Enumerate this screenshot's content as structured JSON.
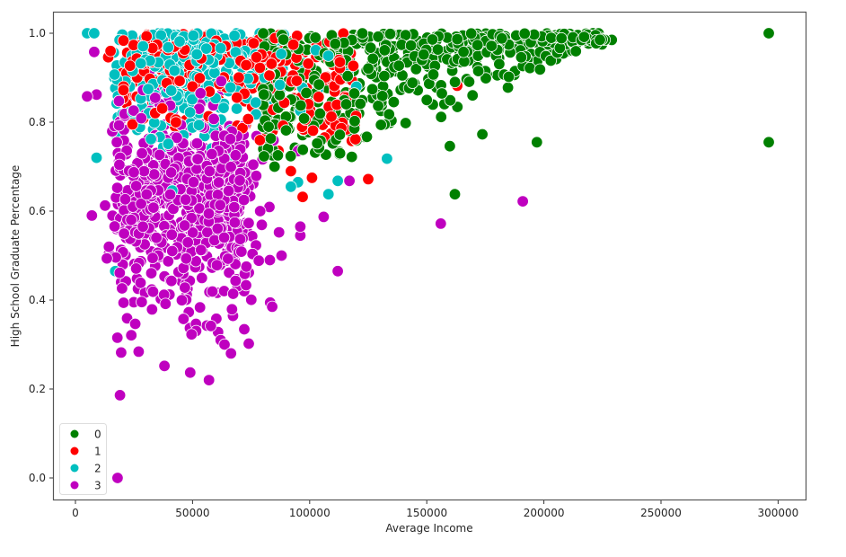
{
  "chart_data": {
    "type": "scatter",
    "title": "",
    "xlabel": "Average Income",
    "ylabel": "High School Graduate Percentage",
    "xlim": [
      -10000,
      312000
    ],
    "ylim": [
      -0.05,
      1.05
    ],
    "xticks": [
      0,
      50000,
      100000,
      150000,
      200000,
      250000,
      300000
    ],
    "xtick_labels": [
      "0",
      "50000",
      "100000",
      "150000",
      "200000",
      "250000",
      "300000"
    ],
    "yticks": [
      0.0,
      0.2,
      0.4,
      0.6,
      0.8,
      1.0
    ],
    "ytick_labels": [
      "0.0",
      "0.2",
      "0.4",
      "0.6",
      "0.8",
      "1.0"
    ],
    "grid": false,
    "legend_position": "lower left",
    "legend": [
      {
        "label": "0",
        "color": "#008000"
      },
      {
        "label": "1",
        "color": "#ff0000"
      },
      {
        "label": "2",
        "color": "#00bfbf"
      },
      {
        "label": "3",
        "color": "#bf00bf"
      }
    ],
    "series": [
      {
        "name": "0",
        "color": "#008000",
        "cluster": {
          "x_range": [
            75000,
            230000
          ],
          "y_range": [
            0.72,
            1.0
          ],
          "n": 520,
          "shape": "upper-right wedge"
        },
        "outliers": [
          [
            296000,
            1.0
          ],
          [
            296000,
            0.755
          ],
          [
            197000,
            0.755
          ],
          [
            162000,
            0.638
          ],
          [
            229000,
            0.985
          ],
          [
            226000,
            0.985
          ],
          [
            221000,
            1.0
          ],
          [
            214000,
            0.985
          ],
          [
            183000,
            0.907
          ],
          [
            175000,
            0.915
          ],
          [
            172000,
            0.915
          ],
          [
            196000,
            0.927
          ],
          [
            141000,
            0.798
          ],
          [
            132000,
            0.795
          ],
          [
            160000,
            0.849
          ],
          [
            150000,
            0.85
          ],
          [
            118000,
            0.722
          ],
          [
            100000,
            0.8
          ],
          [
            85000,
            0.7
          ]
        ]
      },
      {
        "name": "1",
        "color": "#ff0000",
        "cluster": {
          "x_range": [
            20000,
            120000
          ],
          "y_range": [
            0.72,
            1.0
          ],
          "n": 360,
          "shape": "upper-middle band"
        },
        "outliers": [
          [
            125000,
            0.672
          ],
          [
            163000,
            0.882
          ],
          [
            118000,
            0.758
          ],
          [
            101000,
            0.675
          ],
          [
            97000,
            0.632
          ],
          [
            110000,
            0.818
          ],
          [
            92000,
            0.69
          ],
          [
            14000,
            0.946
          ],
          [
            15000,
            0.96
          ]
        ]
      },
      {
        "name": "2",
        "color": "#00bfbf",
        "cluster": {
          "x_range": [
            10000,
            90000
          ],
          "y_range": [
            0.74,
            1.0
          ],
          "n": 380,
          "shape": "upper-left band"
        },
        "outliers": [
          [
            5000,
            1.0
          ],
          [
            8000,
            1.0
          ],
          [
            133000,
            0.718
          ],
          [
            112000,
            0.668
          ],
          [
            108000,
            0.638
          ],
          [
            95000,
            0.665
          ],
          [
            92000,
            0.655
          ],
          [
            17000,
            0.465
          ],
          [
            9000,
            0.72
          ]
        ]
      },
      {
        "name": "3",
        "color": "#bf00bf",
        "cluster": {
          "x_range": [
            10000,
            90000
          ],
          "y_range": [
            0.3,
            0.95
          ],
          "n": 700,
          "shape": "left mass"
        },
        "outliers": [
          [
            18000,
            0.0
          ],
          [
            19000,
            0.186
          ],
          [
            38000,
            0.252
          ],
          [
            49000,
            0.237
          ],
          [
            57000,
            0.22
          ],
          [
            74000,
            0.302
          ],
          [
            62000,
            0.31
          ],
          [
            27000,
            0.284
          ],
          [
            19500,
            0.282
          ],
          [
            5000,
            0.858
          ],
          [
            9000,
            0.862
          ],
          [
            8000,
            0.958
          ],
          [
            7000,
            0.59
          ],
          [
            112000,
            0.465
          ],
          [
            156000,
            0.572
          ],
          [
            191000,
            0.622
          ],
          [
            106000,
            0.587
          ],
          [
            96000,
            0.545
          ],
          [
            96000,
            0.565
          ],
          [
            84000,
            0.385
          ],
          [
            83000,
            0.49
          ],
          [
            88000,
            0.5
          ],
          [
            71000,
            0.44
          ],
          [
            72000,
            0.42
          ],
          [
            117000,
            0.668
          ],
          [
            95000,
            0.735
          ]
        ]
      }
    ],
    "marker": {
      "size": 12,
      "edgecolor": "#ffffff"
    }
  }
}
